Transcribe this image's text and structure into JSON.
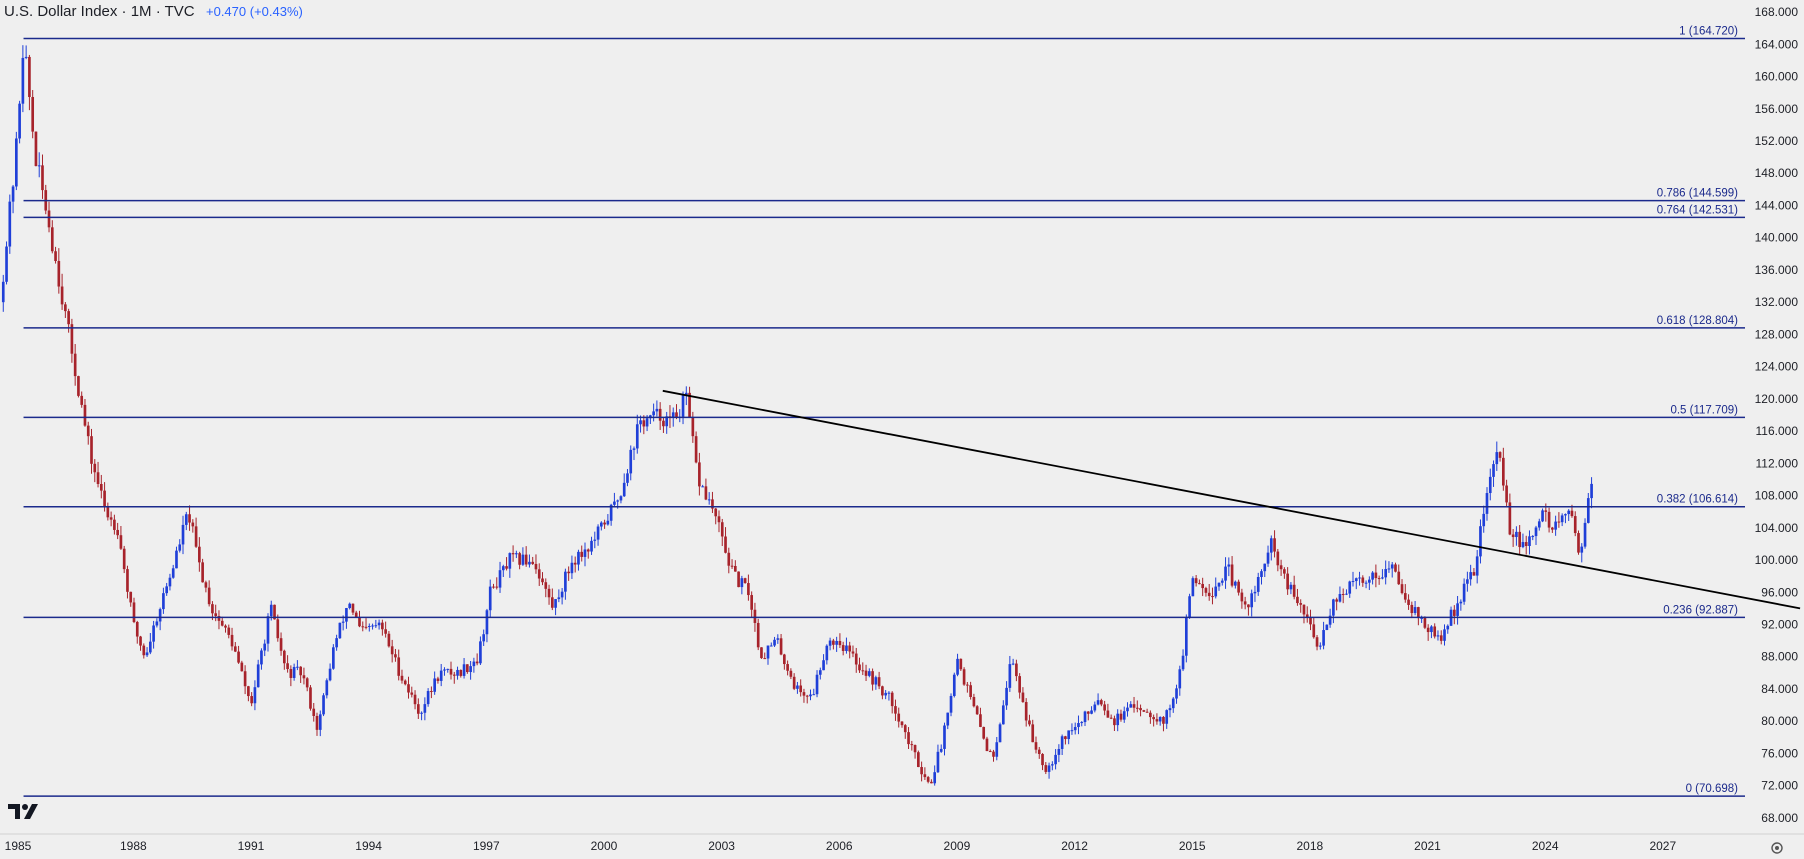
{
  "header": {
    "title": "U.S. Dollar Index · 1M · TVC",
    "change": "+0.470 (+0.43%)"
  },
  "colors": {
    "background": "#efefef",
    "up": "#1f3fd8",
    "down": "#a7232b",
    "fib_line": "#1b2a8c",
    "trendline": "#000000",
    "axis_text": "#1d1f26",
    "change_text": "#2962ff"
  },
  "icons": {
    "logo": "tradingview-logo-icon",
    "settings": "gear-icon"
  },
  "chart_data": {
    "type": "candlestick",
    "title": "U.S. Dollar Index · 1M · TVC",
    "x_ticks": [
      "1985",
      "1988",
      "1991",
      "1994",
      "1997",
      "2000",
      "2003",
      "2006",
      "2009",
      "2012",
      "2015",
      "2018",
      "2021",
      "2024",
      "2027"
    ],
    "y_ticks": [
      "68.000",
      "72.000",
      "76.000",
      "80.000",
      "84.000",
      "88.000",
      "92.000",
      "96.000",
      "100.000",
      "104.000",
      "108.000",
      "112.000",
      "116.000",
      "120.000",
      "124.000",
      "128.000",
      "132.000",
      "136.000",
      "140.000",
      "144.000",
      "148.000",
      "152.000",
      "156.000",
      "160.000",
      "164.000",
      "168.000"
    ],
    "ylim": [
      66,
      169.5
    ],
    "xlim": [
      1984.6,
      2030.6
    ],
    "grid": false,
    "fib_levels": [
      {
        "label": "1 (164.720)",
        "value": 164.72
      },
      {
        "label": "0.786 (144.599)",
        "value": 144.599
      },
      {
        "label": "0.764 (142.531)",
        "value": 142.531
      },
      {
        "label": "0.618 (128.804)",
        "value": 128.804
      },
      {
        "label": "0.5 (117.709)",
        "value": 117.709
      },
      {
        "label": "0.382 (106.614)",
        "value": 106.614
      },
      {
        "label": "0.236 (92.887)",
        "value": 92.887
      },
      {
        "label": "0 (70.698)",
        "value": 70.698
      }
    ],
    "fib_start_year": 1985.2,
    "trendline": {
      "start": [
        2001.5,
        121.0
      ],
      "end": [
        2030.5,
        94.0
      ]
    },
    "price_path": [
      [
        1984.6,
        132
      ],
      [
        1985.0,
        150
      ],
      [
        1985.2,
        164.7
      ],
      [
        1985.5,
        150
      ],
      [
        1985.8,
        143
      ],
      [
        1986.1,
        135
      ],
      [
        1986.5,
        124
      ],
      [
        1986.9,
        113
      ],
      [
        1987.3,
        106
      ],
      [
        1987.6,
        104
      ],
      [
        1988.0,
        92
      ],
      [
        1988.3,
        88
      ],
      [
        1988.6,
        93
      ],
      [
        1989.0,
        99
      ],
      [
        1989.4,
        106
      ],
      [
        1989.7,
        99
      ],
      [
        1990.0,
        94
      ],
      [
        1990.5,
        90
      ],
      [
        1991.0,
        82
      ],
      [
        1991.5,
        94
      ],
      [
        1991.9,
        86
      ],
      [
        1992.3,
        86
      ],
      [
        1992.7,
        79
      ],
      [
        1993.1,
        89
      ],
      [
        1993.5,
        95
      ],
      [
        1993.8,
        91
      ],
      [
        1994.3,
        92
      ],
      [
        1994.8,
        86
      ],
      [
        1995.3,
        81
      ],
      [
        1995.8,
        86
      ],
      [
        1996.3,
        86
      ],
      [
        1996.8,
        88
      ],
      [
        1997.1,
        96
      ],
      [
        1997.6,
        100
      ],
      [
        1998.2,
        100
      ],
      [
        1998.7,
        94
      ],
      [
        1999.2,
        100
      ],
      [
        1999.7,
        102
      ],
      [
        2000.4,
        108
      ],
      [
        2000.9,
        117
      ],
      [
        2001.4,
        118
      ],
      [
        2001.7,
        117
      ],
      [
        2002.1,
        120
      ],
      [
        2002.4,
        110
      ],
      [
        2002.8,
        106
      ],
      [
        2003.3,
        98
      ],
      [
        2003.7,
        96
      ],
      [
        2004.0,
        88
      ],
      [
        2004.4,
        90
      ],
      [
        2004.9,
        84
      ],
      [
        2005.3,
        83
      ],
      [
        2005.7,
        90
      ],
      [
        2006.0,
        90
      ],
      [
        2006.5,
        87
      ],
      [
        2006.9,
        85
      ],
      [
        2007.4,
        82
      ],
      [
        2007.8,
        77
      ],
      [
        2008.3,
        72
      ],
      [
        2008.6,
        77
      ],
      [
        2009.0,
        88
      ],
      [
        2009.4,
        82
      ],
      [
        2009.9,
        75
      ],
      [
        2010.4,
        88
      ],
      [
        2010.9,
        78
      ],
      [
        2011.3,
        74
      ],
      [
        2011.7,
        78
      ],
      [
        2012.2,
        80
      ],
      [
        2012.6,
        83
      ],
      [
        2013.0,
        80
      ],
      [
        2013.6,
        82
      ],
      [
        2014.3,
        80
      ],
      [
        2014.7,
        86
      ],
      [
        2015.0,
        98
      ],
      [
        2015.5,
        96
      ],
      [
        2015.9,
        99
      ],
      [
        2016.3,
        94
      ],
      [
        2016.6,
        96
      ],
      [
        2017.0,
        102
      ],
      [
        2017.4,
        97
      ],
      [
        2017.9,
        93
      ],
      [
        2018.2,
        89
      ],
      [
        2018.6,
        95
      ],
      [
        2019.1,
        97
      ],
      [
        2019.6,
        98
      ],
      [
        2020.1,
        99
      ],
      [
        2020.5,
        95
      ],
      [
        2020.9,
        92
      ],
      [
        2021.3,
        90
      ],
      [
        2021.8,
        95
      ],
      [
        2022.2,
        99
      ],
      [
        2022.5,
        108
      ],
      [
        2022.8,
        114
      ],
      [
        2023.1,
        104
      ],
      [
        2023.5,
        101
      ],
      [
        2023.9,
        106
      ],
      [
        2024.2,
        104
      ],
      [
        2024.6,
        106
      ],
      [
        2024.9,
        101
      ],
      [
        2025.1,
        108
      ],
      [
        2025.2,
        109
      ]
    ]
  }
}
